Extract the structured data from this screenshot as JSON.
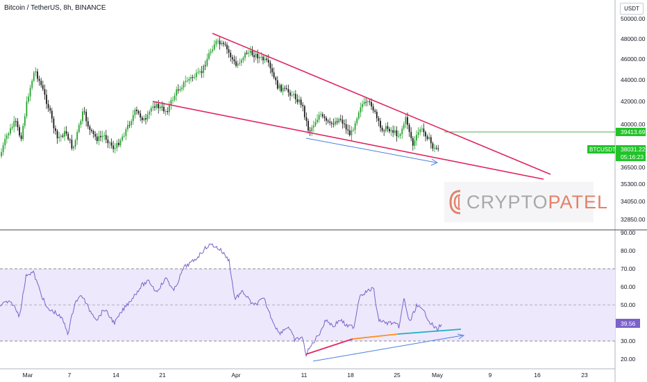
{
  "header": {
    "title": "Bitcoin / TetherUS, 8h, BINANCE",
    "currency_button": "USDT"
  },
  "price_axis": {
    "labels": [
      "50000.00",
      "48000.00",
      "46000.00",
      "44000.00",
      "42000.00",
      "40000.00",
      "36500.00",
      "35300.00",
      "34050.00",
      "32850.00"
    ]
  },
  "price_tags": {
    "level": "39413.69",
    "symbol": "BTCUSDT",
    "last": "38031.22",
    "countdown": "05:16:23"
  },
  "rsi_axis": {
    "labels": [
      "90.00",
      "80.00",
      "70.00",
      "60.00",
      "50.00",
      "30.00",
      "20.00"
    ],
    "current": "39.56"
  },
  "time_axis": {
    "labels": [
      "Mar",
      "7",
      "14",
      "21",
      "Apr",
      "11",
      "18",
      "25",
      "May",
      "9",
      "16",
      "23"
    ]
  },
  "logo": {
    "part1": "CRYPTO",
    "part2": "PATEL"
  },
  "colors": {
    "up": "#26a22e",
    "down": "#1a1a1a",
    "wedge": "#e0245e",
    "arrow": "#4a7fe0",
    "rsi_line": "#7b61c9",
    "rsi_band": "#ede8fb",
    "level_line": "#4caf50",
    "tag_green": "#22c32a",
    "tag_rsi": "#7b61c9",
    "orange": "#ff8c1a",
    "teal": "#1ab0c4"
  }
}
